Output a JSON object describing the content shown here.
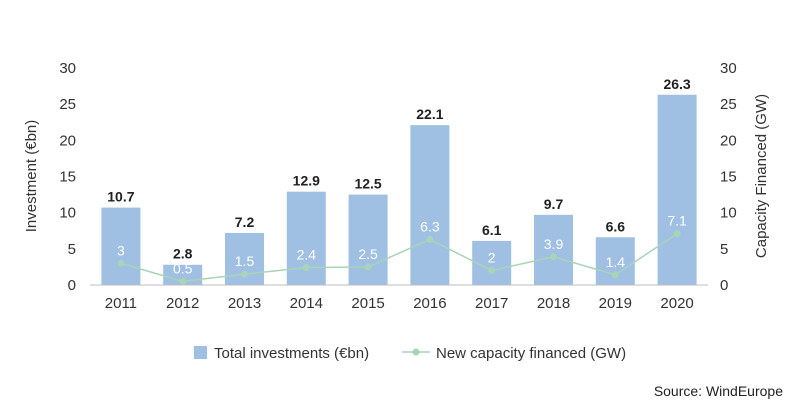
{
  "chart_data": {
    "type": "bar",
    "categories": [
      "2011",
      "2012",
      "2013",
      "2014",
      "2015",
      "2016",
      "2017",
      "2018",
      "2019",
      "2020"
    ],
    "series": [
      {
        "name": "Total investments (€bn)",
        "type": "bar",
        "axis": "left",
        "values": [
          10.7,
          2.8,
          7.2,
          12.9,
          12.5,
          22.1,
          6.1,
          9.7,
          6.6,
          26.3
        ],
        "color": "#9fbfe3"
      },
      {
        "name": "New capacity financed (GW)",
        "type": "line",
        "axis": "right",
        "values": [
          3,
          0.5,
          1.5,
          2.4,
          2.5,
          6.3,
          2,
          3.9,
          1.4,
          7.1
        ],
        "color": "#a8d4b8"
      }
    ],
    "ylabel": "Investment (€bn)",
    "y2label": "Capacity Financed (GW)",
    "ylim": [
      0,
      30
    ],
    "y2lim": [
      0,
      30
    ],
    "yticks": [
      "0",
      "5",
      "10",
      "15",
      "20",
      "25",
      "30"
    ],
    "y2ticks": [
      "0",
      "5",
      "10",
      "15",
      "20",
      "25",
      "30"
    ],
    "grid": false,
    "legend_position": "bottom"
  },
  "source": "Source: WindEurope"
}
